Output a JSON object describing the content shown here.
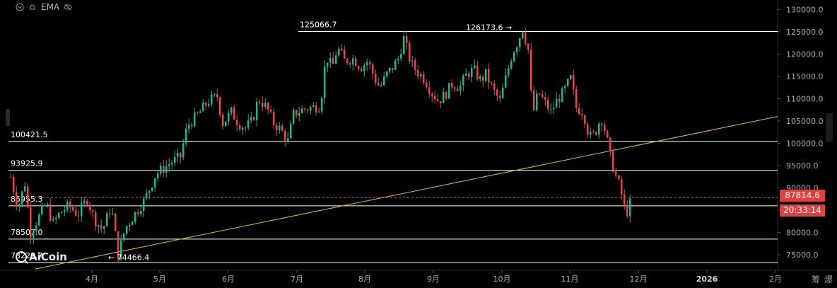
{
  "toolbar": {
    "indicator_label": "EMA"
  },
  "brand": {
    "name": "AiCoin"
  },
  "right_tools": {
    "icon1": "筹",
    "icon2": "爆"
  },
  "current_price": {
    "value": "87814.6",
    "timer": "20:33:14",
    "color": "#e0413f"
  },
  "colors": {
    "up": "#1fb58f",
    "down": "#e24a4a",
    "trendline": "#e6c229",
    "hline": "#ffffff"
  },
  "chart_data": {
    "type": "candlestick",
    "ylim": [
      71500,
      131500
    ],
    "y_ticks": [
      75000,
      80000,
      85000,
      90000,
      95000,
      100000,
      105000,
      110000,
      115000,
      120000,
      125000,
      130000
    ],
    "y_tick_labels": [
      "75000.0",
      "80000.0",
      "85000.0",
      "90000.0",
      "95000.0",
      "100000.0",
      "105000.0",
      "110000.0",
      "115000.0",
      "120000.0",
      "125000.0",
      "130000.0"
    ],
    "x_labels": [
      "4月",
      "5月",
      "6月",
      "7月",
      "8月",
      "9月",
      "10月",
      "11月",
      "12月",
      "2026",
      "2月"
    ],
    "horizontal_levels": [
      {
        "value": 100421.5,
        "label": "100421.5"
      },
      {
        "value": 93925.9,
        "label": "93925.9"
      },
      {
        "value": 85955.3,
        "label": "85955.3"
      },
      {
        "value": 78507.0,
        "label": "78507.0"
      },
      {
        "value": 73229.7,
        "label": "73229.7"
      },
      {
        "value": 125066.7,
        "label": "125066.7"
      }
    ],
    "annotations": [
      {
        "label": "126173.6 →",
        "value": 126173.6
      },
      {
        "label": "← 74466.4",
        "value": 74466.4
      }
    ],
    "trendline": {
      "from": [
        0,
        71800
      ],
      "to": [
        1,
        106000
      ]
    },
    "current_price_line": 87814.6,
    "keypoints": [
      [
        0,
        92500
      ],
      [
        10,
        85500
      ],
      [
        20,
        91000
      ],
      [
        28,
        80000
      ],
      [
        38,
        83000
      ],
      [
        50,
        86500
      ],
      [
        60,
        82000
      ],
      [
        70,
        84500
      ],
      [
        82,
        86000
      ],
      [
        95,
        84000
      ],
      [
        108,
        87500
      ],
      [
        118,
        83000
      ],
      [
        130,
        80500
      ],
      [
        142,
        86000
      ],
      [
        152,
        75000
      ],
      [
        162,
        81000
      ],
      [
        175,
        84000
      ],
      [
        190,
        87500
      ],
      [
        205,
        93000
      ],
      [
        225,
        95500
      ],
      [
        240,
        97000
      ],
      [
        250,
        104000
      ],
      [
        265,
        106500
      ],
      [
        280,
        109500
      ],
      [
        292,
        110500
      ],
      [
        300,
        104500
      ],
      [
        312,
        107000
      ],
      [
        322,
        104500
      ],
      [
        332,
        103500
      ],
      [
        342,
        105000
      ],
      [
        350,
        110000
      ],
      [
        362,
        108000
      ],
      [
        372,
        104500
      ],
      [
        382,
        103000
      ],
      [
        392,
        100500
      ],
      [
        400,
        106500
      ],
      [
        412,
        107500
      ],
      [
        425,
        108000
      ],
      [
        438,
        108500
      ],
      [
        446,
        119500
      ],
      [
        455,
        117000
      ],
      [
        462,
        121500
      ],
      [
        472,
        118500
      ],
      [
        485,
        119000
      ],
      [
        495,
        117000
      ],
      [
        505,
        118500
      ],
      [
        515,
        114500
      ],
      [
        522,
        112500
      ],
      [
        532,
        115500
      ],
      [
        540,
        117000
      ],
      [
        548,
        119000
      ],
      [
        556,
        123500
      ],
      [
        566,
        118000
      ],
      [
        575,
        116000
      ],
      [
        585,
        114500
      ],
      [
        595,
        111500
      ],
      [
        605,
        109500
      ],
      [
        615,
        111000
      ],
      [
        625,
        113500
      ],
      [
        635,
        112500
      ],
      [
        645,
        115500
      ],
      [
        655,
        116500
      ],
      [
        665,
        114000
      ],
      [
        672,
        115500
      ],
      [
        682,
        112000
      ],
      [
        692,
        109500
      ],
      [
        700,
        114500
      ],
      [
        710,
        120500
      ],
      [
        718,
        123000
      ],
      [
        724,
        125800
      ],
      [
        732,
        121000
      ],
      [
        738,
        106000
      ],
      [
        746,
        111500
      ],
      [
        756,
        109000
      ],
      [
        764,
        107000
      ],
      [
        772,
        109500
      ],
      [
        782,
        111500
      ],
      [
        792,
        114500
      ],
      [
        800,
        108000
      ],
      [
        810,
        107000
      ],
      [
        818,
        101500
      ],
      [
        826,
        102000
      ],
      [
        835,
        106000
      ],
      [
        842,
        102000
      ],
      [
        848,
        97000
      ],
      [
        855,
        93000
      ],
      [
        862,
        90000
      ],
      [
        868,
        85500
      ],
      [
        873,
        84500
      ],
      [
        878,
        87800
      ]
    ]
  }
}
